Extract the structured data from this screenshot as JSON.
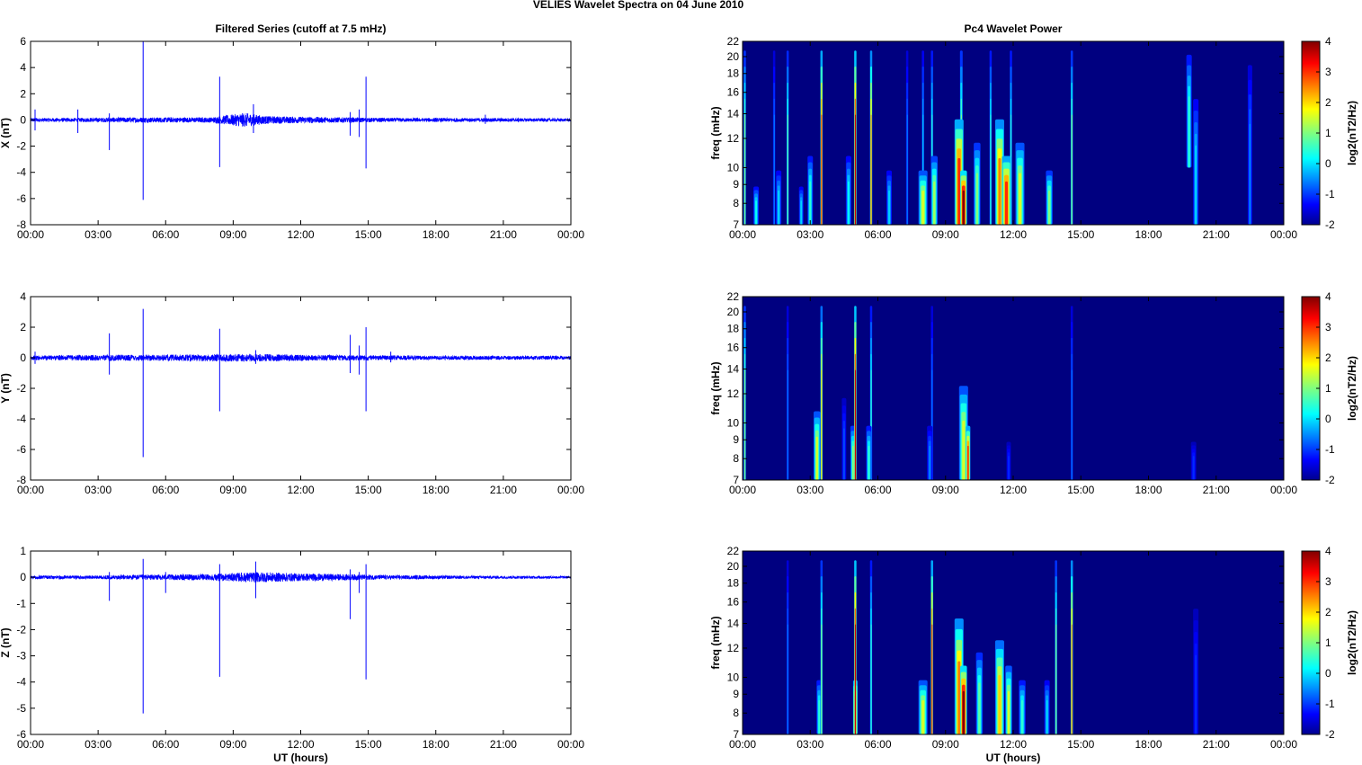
{
  "figure": {
    "title": "VELIES Wavelet Spectra on 04 June      2010"
  },
  "chart_data": [
    {
      "type": "line",
      "title": "Filtered Series (cutoff at 7.5 mHz)",
      "xlabel": "",
      "ylabel": "X (nT)",
      "xlim": [
        0,
        24
      ],
      "ylim": [
        -8,
        6
      ],
      "yticks": [
        -8,
        -6,
        -4,
        -2,
        0,
        2,
        4,
        6
      ],
      "xticks": [
        "00:00",
        "03:00",
        "06:00",
        "09:00",
        "12:00",
        "15:00",
        "18:00",
        "21:00",
        "00:00"
      ],
      "series_color": "#0000ff",
      "noise": [
        [
          0,
          0.15
        ],
        [
          2,
          0.15
        ],
        [
          4.5,
          0.2
        ],
        [
          8,
          0.2
        ],
        [
          9.5,
          0.55
        ],
        [
          10.5,
          0.3
        ],
        [
          12,
          0.25
        ],
        [
          14,
          0.2
        ],
        [
          16,
          0.15
        ],
        [
          20,
          0.15
        ],
        [
          24,
          0.12
        ]
      ],
      "spikes": [
        [
          0.2,
          0.8,
          -0.8
        ],
        [
          2.1,
          0.8,
          -1.0
        ],
        [
          3.5,
          0.5,
          -2.3
        ],
        [
          5.0,
          6.0,
          -6.1
        ],
        [
          8.4,
          3.3,
          -3.6
        ],
        [
          9.9,
          1.2,
          -1.0
        ],
        [
          14.2,
          0.6,
          -1.2
        ],
        [
          14.6,
          0.8,
          -1.3
        ],
        [
          14.9,
          3.3,
          -3.7
        ],
        [
          20.2,
          0.4,
          -0.3
        ]
      ]
    },
    {
      "type": "line",
      "title": "",
      "xlabel": "",
      "ylabel": "Y (nT)",
      "xlim": [
        0,
        24
      ],
      "ylim": [
        -8,
        4
      ],
      "yticks": [
        -8,
        -6,
        -4,
        -2,
        0,
        2,
        4
      ],
      "xticks": [
        "00:00",
        "03:00",
        "06:00",
        "09:00",
        "12:00",
        "15:00",
        "18:00",
        "21:00",
        "00:00"
      ],
      "series_color": "#0000ff",
      "noise": [
        [
          0,
          0.15
        ],
        [
          4,
          0.2
        ],
        [
          6,
          0.2
        ],
        [
          9,
          0.25
        ],
        [
          10,
          0.25
        ],
        [
          12,
          0.2
        ],
        [
          16,
          0.15
        ],
        [
          24,
          0.12
        ]
      ],
      "spikes": [
        [
          0.2,
          0.4,
          -0.4
        ],
        [
          3.5,
          1.6,
          -1.1
        ],
        [
          5.0,
          3.2,
          -6.5
        ],
        [
          8.4,
          1.9,
          -3.5
        ],
        [
          10.0,
          0.5,
          -0.4
        ],
        [
          14.2,
          1.5,
          -1.0
        ],
        [
          14.6,
          0.8,
          -1.1
        ],
        [
          14.9,
          2.0,
          -3.5
        ],
        [
          16.0,
          0.4,
          -0.3
        ]
      ]
    },
    {
      "type": "line",
      "title": "",
      "xlabel": "UT (hours)",
      "ylabel": "Z (nT)",
      "xlim": [
        0,
        24
      ],
      "ylim": [
        -6,
        1
      ],
      "yticks": [
        -6,
        -5,
        -4,
        -3,
        -2,
        -1,
        0,
        1
      ],
      "xticks": [
        "00:00",
        "03:00",
        "06:00",
        "09:00",
        "12:00",
        "15:00",
        "18:00",
        "21:00",
        "00:00"
      ],
      "series_color": "#0000ff",
      "noise": [
        [
          0,
          0.07
        ],
        [
          3,
          0.07
        ],
        [
          5,
          0.1
        ],
        [
          8,
          0.12
        ],
        [
          10,
          0.2
        ],
        [
          12,
          0.15
        ],
        [
          14,
          0.12
        ],
        [
          16,
          0.08
        ],
        [
          20,
          0.06
        ],
        [
          24,
          0.05
        ]
      ],
      "spikes": [
        [
          3.5,
          0.2,
          -0.9
        ],
        [
          5.0,
          0.7,
          -5.2
        ],
        [
          6.0,
          0.2,
          -0.6
        ],
        [
          8.4,
          0.5,
          -3.8
        ],
        [
          10.0,
          0.6,
          -0.8
        ],
        [
          14.2,
          0.3,
          -1.6
        ],
        [
          14.6,
          0.2,
          -0.6
        ],
        [
          14.9,
          0.5,
          -3.9
        ]
      ]
    },
    {
      "type": "heatmap",
      "title": "Pc4 Wavelet Power",
      "xlabel": "",
      "ylabel": "freq (mHz)",
      "colorbar_label": "log2(nT2/Hz)",
      "xlim": [
        0,
        24
      ],
      "ylim": [
        7,
        22
      ],
      "clim": [
        -2,
        4
      ],
      "yticks": [
        7,
        8,
        9,
        10,
        12,
        14,
        16,
        18,
        20,
        22
      ],
      "cticks": [
        -2,
        -1,
        0,
        1,
        2,
        3,
        4
      ],
      "xticks": [
        "00:00",
        "03:00",
        "06:00",
        "09:00",
        "12:00",
        "15:00",
        "18:00",
        "21:00",
        "00:00"
      ],
      "background": -2,
      "features": [
        [
          0.1,
          0.05,
          7,
          22,
          1.0
        ],
        [
          1.4,
          0.05,
          7,
          22,
          -0.5
        ],
        [
          2.0,
          0.05,
          7,
          22,
          0.8
        ],
        [
          3.5,
          0.05,
          7,
          22,
          3.0
        ],
        [
          5.0,
          0.05,
          7,
          22,
          3.5
        ],
        [
          5.7,
          0.05,
          7,
          22,
          2.5
        ],
        [
          7.3,
          0.05,
          7,
          22,
          -0.5
        ],
        [
          8.0,
          0.05,
          7,
          22,
          0.0
        ],
        [
          8.4,
          0.05,
          7,
          22,
          0.5
        ],
        [
          9.7,
          0.06,
          7,
          22,
          1.0
        ],
        [
          11.0,
          0.05,
          7,
          22,
          0.5
        ],
        [
          11.9,
          0.05,
          7,
          22,
          0.5
        ],
        [
          14.6,
          0.05,
          7,
          22,
          1.0
        ],
        [
          3.0,
          0.12,
          7,
          11,
          0.5
        ],
        [
          4.7,
          0.12,
          7,
          11,
          0.2
        ],
        [
          6.5,
          0.12,
          7,
          10,
          0.0
        ],
        [
          8.0,
          0.2,
          7,
          10,
          1.5
        ],
        [
          8.5,
          0.15,
          7,
          11,
          1.2
        ],
        [
          9.6,
          0.2,
          7,
          14,
          3.0
        ],
        [
          9.8,
          0.15,
          7,
          10,
          4.0
        ],
        [
          10.4,
          0.15,
          7,
          12,
          1.0
        ],
        [
          11.4,
          0.2,
          7,
          14,
          2.5
        ],
        [
          11.7,
          0.2,
          7,
          11,
          3.0
        ],
        [
          12.3,
          0.2,
          7,
          12,
          1.5
        ],
        [
          13.6,
          0.15,
          7,
          10,
          1.0
        ],
        [
          19.8,
          0.12,
          10,
          21,
          0.5
        ],
        [
          20.1,
          0.12,
          7,
          16,
          0.0
        ],
        [
          22.5,
          0.1,
          7,
          20,
          -0.5
        ],
        [
          0.6,
          0.12,
          7,
          9,
          0.3
        ],
        [
          1.6,
          0.12,
          7,
          10,
          0.0
        ],
        [
          2.6,
          0.1,
          7,
          9,
          0.0
        ]
      ]
    },
    {
      "type": "heatmap",
      "title": "",
      "xlabel": "",
      "ylabel": "freq (mHz)",
      "colorbar_label": "log2(nT2/Hz)",
      "xlim": [
        0,
        24
      ],
      "ylim": [
        7,
        22
      ],
      "clim": [
        -2,
        4
      ],
      "yticks": [
        7,
        8,
        9,
        10,
        12,
        14,
        16,
        18,
        20,
        22
      ],
      "cticks": [
        -2,
        -1,
        0,
        1,
        2,
        3,
        4
      ],
      "xticks": [
        "00:00",
        "03:00",
        "06:00",
        "09:00",
        "12:00",
        "15:00",
        "18:00",
        "21:00",
        "00:00"
      ],
      "background": -2,
      "features": [
        [
          0.1,
          0.05,
          7,
          22,
          1.0
        ],
        [
          2.0,
          0.05,
          7,
          22,
          -0.5
        ],
        [
          3.5,
          0.05,
          7,
          22,
          2.0
        ],
        [
          5.0,
          0.05,
          7,
          22,
          3.5
        ],
        [
          5.7,
          0.05,
          7,
          22,
          0.5
        ],
        [
          8.4,
          0.05,
          7,
          22,
          -0.5
        ],
        [
          14.6,
          0.05,
          7,
          22,
          -0.5
        ],
        [
          3.3,
          0.15,
          7,
          11,
          1.5
        ],
        [
          4.9,
          0.12,
          7,
          10,
          1.0
        ],
        [
          5.6,
          0.12,
          7,
          10,
          0.5
        ],
        [
          9.8,
          0.2,
          7,
          13,
          1.5
        ],
        [
          10.0,
          0.1,
          7,
          10,
          3.0
        ],
        [
          8.3,
          0.12,
          7,
          10,
          -0.5
        ],
        [
          11.8,
          0.1,
          7,
          9,
          -1.0
        ],
        [
          20.0,
          0.12,
          7,
          9,
          -1.0
        ],
        [
          4.5,
          0.1,
          7,
          12,
          -0.8
        ]
      ]
    },
    {
      "type": "heatmap",
      "title": "",
      "xlabel": "UT (hours)",
      "ylabel": "freq (mHz)",
      "colorbar_label": "log2(nT2/Hz)",
      "xlim": [
        0,
        24
      ],
      "ylim": [
        7,
        22
      ],
      "clim": [
        -2,
        4
      ],
      "yticks": [
        7,
        8,
        9,
        10,
        12,
        14,
        16,
        18,
        20,
        22
      ],
      "cticks": [
        -2,
        -1,
        0,
        1,
        2,
        3,
        4
      ],
      "xticks": [
        "00:00",
        "03:00",
        "06:00",
        "09:00",
        "12:00",
        "15:00",
        "18:00",
        "21:00",
        "00:00"
      ],
      "background": -2,
      "features": [
        [
          2.0,
          0.05,
          7,
          22,
          -0.5
        ],
        [
          3.5,
          0.05,
          7,
          22,
          1.0
        ],
        [
          5.0,
          0.05,
          7,
          22,
          3.5
        ],
        [
          5.7,
          0.05,
          7,
          22,
          0.5
        ],
        [
          8.4,
          0.05,
          7,
          22,
          3.0
        ],
        [
          13.9,
          0.05,
          7,
          22,
          1.0
        ],
        [
          14.6,
          0.05,
          7,
          22,
          2.5
        ],
        [
          3.4,
          0.12,
          7,
          10,
          0.5
        ],
        [
          5.0,
          0.1,
          7,
          10,
          3.0
        ],
        [
          8.0,
          0.2,
          7,
          10,
          1.5
        ],
        [
          9.6,
          0.2,
          7,
          15,
          2.5
        ],
        [
          9.8,
          0.15,
          7,
          11,
          4.0
        ],
        [
          10.5,
          0.15,
          7,
          12,
          0.8
        ],
        [
          11.4,
          0.2,
          7,
          13,
          2.0
        ],
        [
          11.8,
          0.15,
          7,
          11,
          1.5
        ],
        [
          12.4,
          0.15,
          7,
          10,
          0.5
        ],
        [
          13.5,
          0.12,
          7,
          10,
          0.0
        ],
        [
          20.1,
          0.12,
          7,
          16,
          -1.0
        ]
      ]
    }
  ]
}
